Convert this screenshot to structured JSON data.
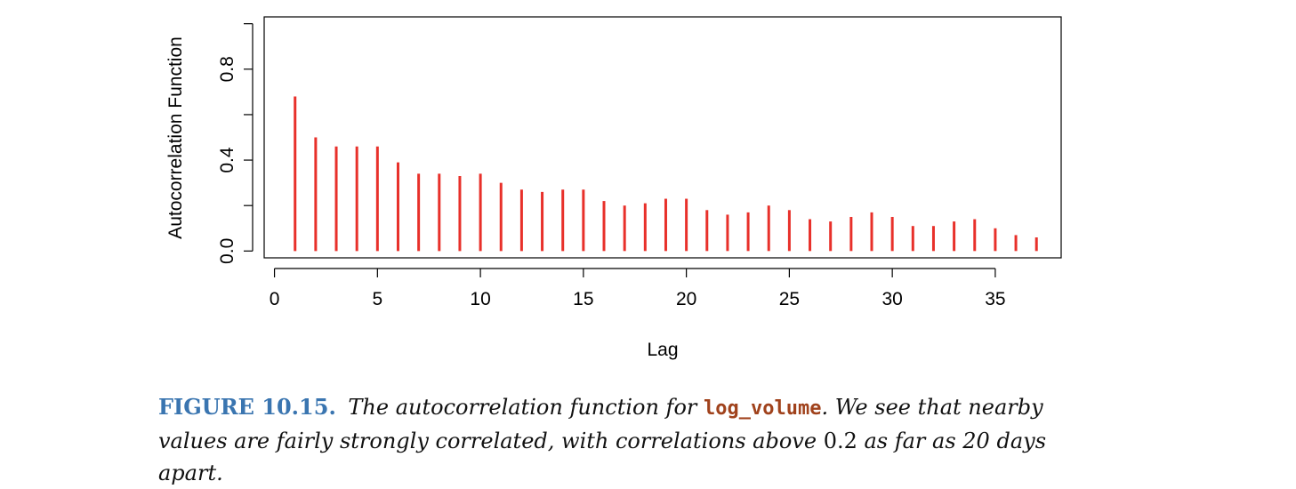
{
  "chart_data": {
    "type": "bar",
    "xlabel": "Lag",
    "ylabel": "Autocorrelation Function",
    "xlim": [
      -0.5,
      38.2
    ],
    "ylim": [
      -0.03,
      1.03
    ],
    "x_ticks": [
      "0",
      "5",
      "10",
      "15",
      "20",
      "25",
      "30",
      "35"
    ],
    "x_tick_values": [
      0,
      5,
      10,
      15,
      20,
      25,
      30,
      35
    ],
    "y_ticks": [
      "0.0",
      "0.4",
      "0.8"
    ],
    "y_tick_values": [
      0.0,
      0.4,
      0.8
    ],
    "y_minor_ticks": [
      0.0,
      0.2,
      0.4,
      0.6,
      0.8,
      1.0
    ],
    "color": "#e8302a",
    "x": [
      1,
      2,
      3,
      4,
      5,
      6,
      7,
      8,
      9,
      10,
      11,
      12,
      13,
      14,
      15,
      16,
      17,
      18,
      19,
      20,
      21,
      22,
      23,
      24,
      25,
      26,
      27,
      28,
      29,
      30,
      31,
      32,
      33,
      34,
      35,
      36,
      37
    ],
    "values": [
      0.68,
      0.5,
      0.46,
      0.46,
      0.46,
      0.39,
      0.34,
      0.34,
      0.33,
      0.34,
      0.3,
      0.27,
      0.26,
      0.27,
      0.27,
      0.22,
      0.2,
      0.21,
      0.23,
      0.23,
      0.18,
      0.16,
      0.17,
      0.2,
      0.18,
      0.14,
      0.13,
      0.15,
      0.17,
      0.15,
      0.11,
      0.11,
      0.13,
      0.14,
      0.1,
      0.07,
      0.06
    ]
  },
  "caption": {
    "label": "FIGURE 10.15.",
    "text_before_code": " The autocorrelation function for ",
    "code": "log_volume",
    "text_after_code": ". We see that nearby values are fairly strongly correlated, with correlations above ",
    "number": "0.2",
    "text_end": " as far as 20 days apart."
  }
}
